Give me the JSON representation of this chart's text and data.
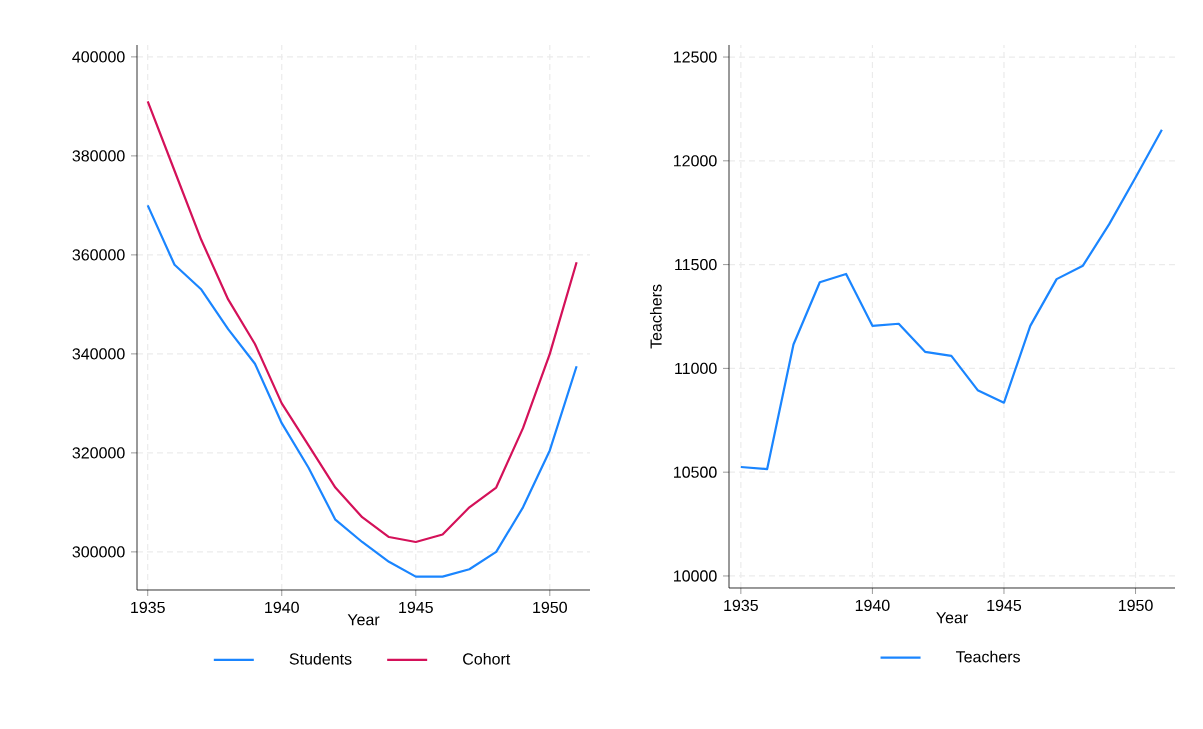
{
  "chart_data": [
    {
      "type": "line",
      "xlabel": "Year",
      "x": [
        1935,
        1936,
        1937,
        1938,
        1939,
        1940,
        1941,
        1942,
        1943,
        1944,
        1945,
        1946,
        1947,
        1948,
        1949,
        1950,
        1951
      ],
      "series": [
        {
          "name": "Students",
          "color": "#1a85ff",
          "values": [
            370000,
            358000,
            353000,
            345000,
            338000,
            326000,
            317000,
            306500,
            302000,
            298000,
            295000,
            295000,
            296500,
            300000,
            309000,
            320500,
            337500
          ]
        },
        {
          "name": "Cohort",
          "color": "#d41159",
          "values": [
            391000,
            377000,
            363000,
            351000,
            342000,
            330000,
            321500,
            313000,
            307000,
            303000,
            302000,
            303500,
            309000,
            313000,
            325000,
            340000,
            358500
          ]
        }
      ],
      "xlim": [
        1934.6,
        1951.5
      ],
      "xticks": [
        1935,
        1940,
        1945,
        1950
      ],
      "ylim": [
        292300,
        402400
      ],
      "yticks": [
        300000,
        320000,
        340000,
        360000,
        380000,
        400000
      ],
      "grid": true,
      "legend": "bottom",
      "line_style": "solid"
    },
    {
      "type": "line",
      "xlabel": "Year",
      "ylabel": "Teachers",
      "x": [
        1935,
        1936,
        1937,
        1938,
        1939,
        1940,
        1941,
        1942,
        1943,
        1944,
        1945,
        1946,
        1947,
        1948,
        1949,
        1950,
        1951
      ],
      "series": [
        {
          "name": "Teachers",
          "color": "#1a85ff",
          "values": [
            10525,
            10515,
            11115,
            11415,
            11455,
            11205,
            11215,
            11080,
            11060,
            10895,
            10835,
            11205,
            11430,
            11495,
            11695,
            11920,
            12150
          ]
        }
      ],
      "xlim": [
        1934.55,
        1951.5
      ],
      "xticks": [
        1935,
        1940,
        1945,
        1950
      ],
      "ylim": [
        9942,
        12558
      ],
      "yticks": [
        10000,
        10500,
        11000,
        11500,
        12000,
        12500
      ],
      "grid": true,
      "legend": "bottom",
      "line_style": "solid"
    }
  ]
}
